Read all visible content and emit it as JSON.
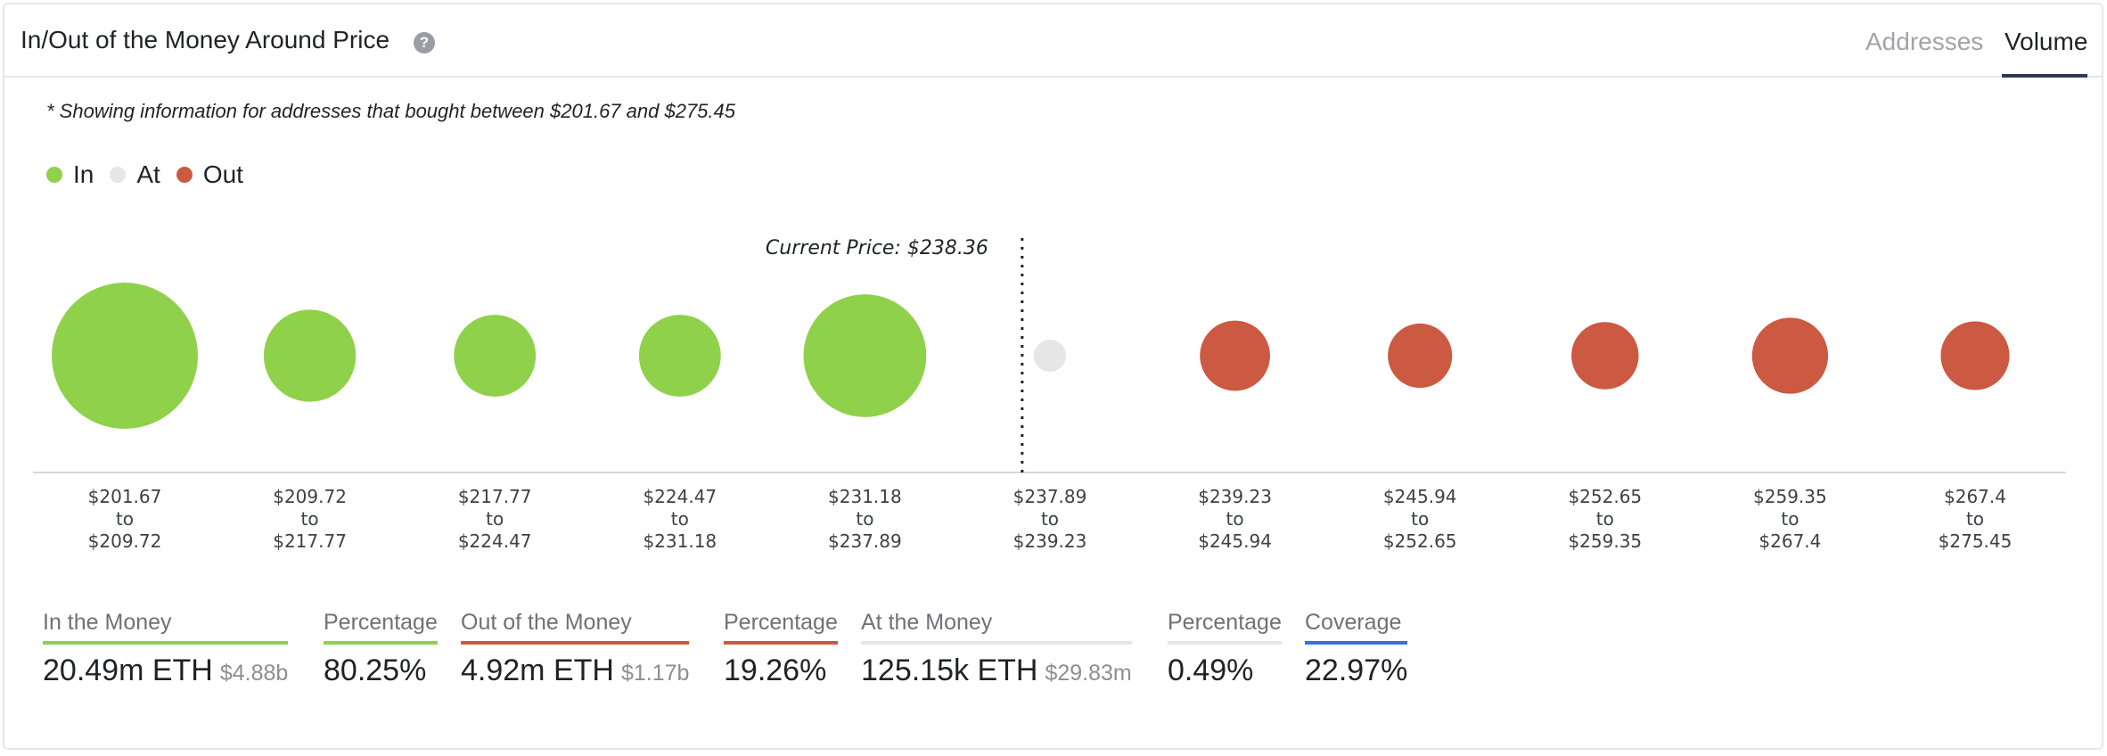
{
  "header": {
    "title": "In/Out of the Money Around Price",
    "help_icon": "question-icon",
    "tabs": [
      {
        "label": "Addresses",
        "active": false
      },
      {
        "label": "Volume",
        "active": true
      }
    ]
  },
  "note": "* Showing information for addresses that bought between $201.67 and $275.45",
  "legend": [
    {
      "label": "In",
      "color": "#8fd14b"
    },
    {
      "label": "At",
      "color": "#e6e6e6"
    },
    {
      "label": "Out",
      "color": "#cc5941"
    }
  ],
  "chart_data": {
    "type": "scatter",
    "current_price_label": "Current Price: $238.36",
    "current_price_after_index": 4,
    "colors": {
      "In": "#8fd14b",
      "At": "#e6e6e6",
      "Out": "#cc5941"
    },
    "buckets": [
      {
        "from": "$201.67",
        "to": "$209.72",
        "status": "In",
        "relative_size": 1.0
      },
      {
        "from": "$209.72",
        "to": "$217.77",
        "status": "In",
        "relative_size": 0.63
      },
      {
        "from": "$217.77",
        "to": "$224.47",
        "status": "In",
        "relative_size": 0.56
      },
      {
        "from": "$224.47",
        "to": "$231.18",
        "status": "In",
        "relative_size": 0.56
      },
      {
        "from": "$231.18",
        "to": "$237.89",
        "status": "In",
        "relative_size": 0.84
      },
      {
        "from": "$237.89",
        "to": "$239.23",
        "status": "At",
        "relative_size": 0.22
      },
      {
        "from": "$239.23",
        "to": "$245.94",
        "status": "Out",
        "relative_size": 0.48
      },
      {
        "from": "$245.94",
        "to": "$252.65",
        "status": "Out",
        "relative_size": 0.44
      },
      {
        "from": "$252.65",
        "to": "$259.35",
        "status": "Out",
        "relative_size": 0.46
      },
      {
        "from": "$259.35",
        "to": "$267.4",
        "status": "Out",
        "relative_size": 0.52
      },
      {
        "from": "$267.4",
        "to": "$275.45",
        "status": "Out",
        "relative_size": 0.47
      }
    ],
    "range_joiner": "to"
  },
  "stats": [
    {
      "label": "In the Money",
      "value": "20.49m ETH",
      "sub": "$4.88b",
      "color": "#8fd14b"
    },
    {
      "label": "Percentage",
      "value": "80.25%",
      "sub": "",
      "color": "#8fd14b"
    },
    {
      "label": "Out of the Money",
      "value": "4.92m ETH",
      "sub": "$1.17b",
      "color": "#cc5941"
    },
    {
      "label": "Percentage",
      "value": "19.26%",
      "sub": "",
      "color": "#cc5941"
    },
    {
      "label": "At the Money",
      "value": "125.15k ETH",
      "sub": "$29.83m",
      "color": "#e6e6e6"
    },
    {
      "label": "Percentage",
      "value": "0.49%",
      "sub": "",
      "color": "#e6e6e6"
    },
    {
      "label": "Coverage",
      "value": "22.97%",
      "sub": "",
      "color": "#3b6fe0"
    }
  ]
}
